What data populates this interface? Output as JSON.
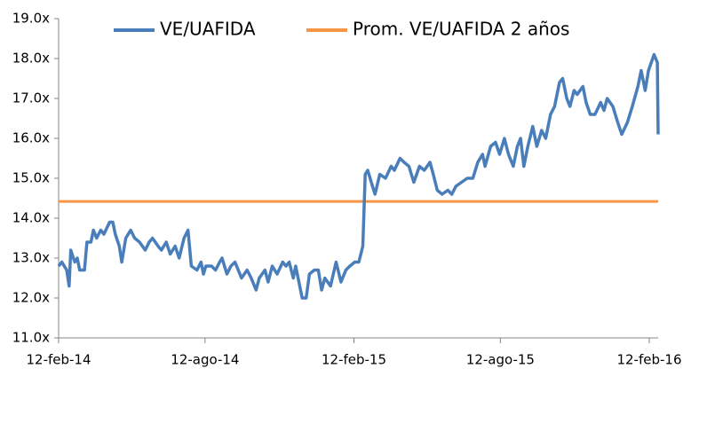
{
  "chart_data": {
    "type": "line",
    "legend": "top",
    "grid": false,
    "xlim": [
      "2014-02-12",
      "2016-02-23"
    ],
    "xticks": [
      {
        "value": "2014-02-12",
        "label": "12-feb-14"
      },
      {
        "value": "2014-08-12",
        "label": "12-ago-14"
      },
      {
        "value": "2015-02-12",
        "label": "12-feb-15"
      },
      {
        "value": "2015-08-12",
        "label": "12-ago-15"
      },
      {
        "value": "2016-02-12",
        "label": "12-feb-16"
      }
    ],
    "ylim": [
      11,
      19
    ],
    "yticks": [
      {
        "value": 11,
        "label": "11.0x"
      },
      {
        "value": 12,
        "label": "12.0x"
      },
      {
        "value": 13,
        "label": "13.0x"
      },
      {
        "value": 14,
        "label": "14.0x"
      },
      {
        "value": 15,
        "label": "15.0x"
      },
      {
        "value": 16,
        "label": "16.0x"
      },
      {
        "value": 17,
        "label": "17.0x"
      },
      {
        "value": 18,
        "label": "18.0x"
      },
      {
        "value": 19,
        "label": "19.0x"
      }
    ],
    "series": [
      {
        "name": "VE/UAFIDA",
        "color": "#4a7ebb",
        "x": [
          "2014-02-12",
          "2014-02-16",
          "2014-02-22",
          "2014-02-25",
          "2014-02-27",
          "2014-03-04",
          "2014-03-07",
          "2014-03-10",
          "2014-03-16",
          "2014-03-19",
          "2014-03-24",
          "2014-03-27",
          "2014-03-31",
          "2014-04-05",
          "2014-04-09",
          "2014-04-16",
          "2014-04-20",
          "2014-04-23",
          "2014-04-28",
          "2014-05-01",
          "2014-05-06",
          "2014-05-12",
          "2014-05-17",
          "2014-05-23",
          "2014-05-30",
          "2014-06-04",
          "2014-06-08",
          "2014-06-15",
          "2014-06-19",
          "2014-06-25",
          "2014-06-30",
          "2014-07-06",
          "2014-07-11",
          "2014-07-17",
          "2014-07-22",
          "2014-07-26",
          "2014-08-02",
          "2014-08-07",
          "2014-08-10",
          "2014-08-13",
          "2014-08-20",
          "2014-08-25",
          "2014-08-30",
          "2014-09-02",
          "2014-09-08",
          "2014-09-13",
          "2014-09-18",
          "2014-09-26",
          "2014-10-03",
          "2014-10-08",
          "2014-10-14",
          "2014-10-18",
          "2014-10-25",
          "2014-10-29",
          "2014-11-03",
          "2014-11-09",
          "2014-11-16",
          "2014-11-20",
          "2014-11-24",
          "2014-11-29",
          "2014-12-02",
          "2014-12-10",
          "2014-12-15",
          "2014-12-19",
          "2014-12-25",
          "2014-12-30",
          "2015-01-03",
          "2015-01-07",
          "2015-01-14",
          "2015-01-21",
          "2015-01-27",
          "2015-02-02",
          "2015-02-07",
          "2015-02-13",
          "2015-02-18",
          "2015-02-23",
          "2015-02-26",
          "2015-03-01",
          "2015-03-07",
          "2015-03-10",
          "2015-03-16",
          "2015-03-23",
          "2015-03-30",
          "2015-04-03",
          "2015-04-10",
          "2015-04-15",
          "2015-04-21",
          "2015-04-27",
          "2015-05-04",
          "2015-05-10",
          "2015-05-17",
          "2015-05-21",
          "2015-05-26",
          "2015-06-01",
          "2015-06-08",
          "2015-06-13",
          "2015-06-18",
          "2015-06-25",
          "2015-07-02",
          "2015-07-09",
          "2015-07-15",
          "2015-07-21",
          "2015-07-24",
          "2015-07-31",
          "2015-08-06",
          "2015-08-11",
          "2015-08-17",
          "2015-08-22",
          "2015-08-28",
          "2015-09-02",
          "2015-09-06",
          "2015-09-10",
          "2015-09-15",
          "2015-09-21",
          "2015-09-26",
          "2015-10-02",
          "2015-10-07",
          "2015-10-13",
          "2015-10-18",
          "2015-10-24",
          "2015-10-28",
          "2015-11-02",
          "2015-11-06",
          "2015-11-11",
          "2015-11-15",
          "2015-11-22",
          "2015-11-26",
          "2015-12-01",
          "2015-12-07",
          "2015-12-14",
          "2015-12-18",
          "2015-12-22",
          "2015-12-29",
          "2016-01-04",
          "2016-01-09",
          "2016-01-16",
          "2016-01-22",
          "2016-01-29",
          "2016-02-02",
          "2016-02-07",
          "2016-02-11",
          "2016-02-18",
          "2016-02-22",
          "2016-02-23"
        ],
        "values": [
          12.8,
          12.9,
          12.7,
          12.3,
          13.2,
          12.9,
          13.0,
          12.7,
          12.7,
          13.4,
          13.4,
          13.7,
          13.5,
          13.7,
          13.6,
          13.9,
          13.9,
          13.6,
          13.3,
          12.9,
          13.5,
          13.7,
          13.5,
          13.4,
          13.2,
          13.4,
          13.5,
          13.3,
          13.2,
          13.4,
          13.1,
          13.3,
          13.0,
          13.5,
          13.7,
          12.8,
          12.7,
          12.9,
          12.6,
          12.8,
          12.8,
          12.7,
          12.9,
          13.0,
          12.6,
          12.8,
          12.9,
          12.5,
          12.7,
          12.5,
          12.2,
          12.5,
          12.7,
          12.4,
          12.8,
          12.6,
          12.9,
          12.8,
          12.9,
          12.5,
          12.8,
          12.0,
          12.0,
          12.6,
          12.7,
          12.7,
          12.2,
          12.5,
          12.3,
          12.9,
          12.4,
          12.7,
          12.8,
          12.9,
          12.9,
          13.3,
          15.1,
          15.2,
          14.8,
          14.6,
          15.1,
          15.0,
          15.3,
          15.2,
          15.5,
          15.4,
          15.3,
          14.9,
          15.3,
          15.2,
          15.4,
          15.1,
          14.7,
          14.6,
          14.7,
          14.6,
          14.8,
          14.9,
          15.0,
          15.0,
          15.4,
          15.6,
          15.3,
          15.8,
          15.9,
          15.6,
          16.0,
          15.6,
          15.3,
          15.8,
          16.0,
          15.3,
          15.8,
          16.3,
          15.8,
          16.2,
          16.0,
          16.6,
          16.8,
          17.4,
          17.5,
          17.0,
          16.8,
          17.2,
          17.1,
          17.3,
          16.9,
          16.6,
          16.6,
          16.9,
          16.7,
          17.0,
          16.8,
          16.4,
          16.1,
          16.4,
          16.8,
          17.3,
          17.7,
          17.2,
          17.7,
          18.1,
          17.9,
          16.1
        ]
      },
      {
        "name": "Prom. VE/UAFIDA 2 años",
        "color": "#f79646",
        "x": [
          "2014-02-12",
          "2016-02-23"
        ],
        "values": [
          14.42,
          14.42
        ]
      }
    ]
  }
}
